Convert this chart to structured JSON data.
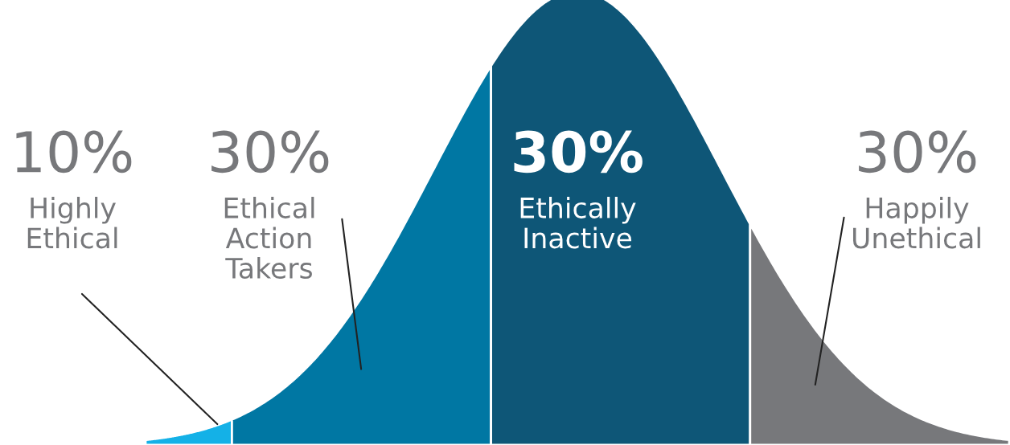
{
  "chart_data": {
    "type": "other",
    "categories": [
      "Highly\nEthical",
      "Ethical\nAction\nTakers",
      "Ethically\nInactive",
      "Happily\nUnethical"
    ],
    "values": [
      10,
      30,
      30,
      30
    ],
    "value_labels": [
      "10%",
      "30%",
      "30%",
      "30%"
    ],
    "colors": [
      "#14b1e7",
      "#0077a3",
      "#0e5677",
      "#77787b"
    ]
  }
}
